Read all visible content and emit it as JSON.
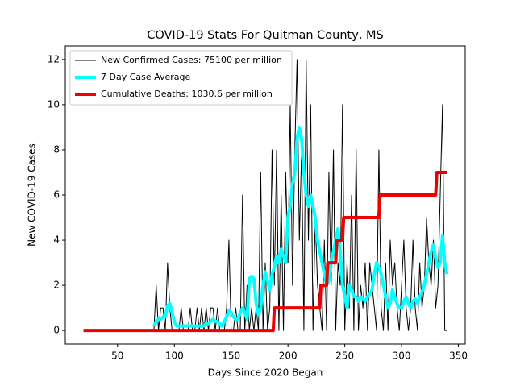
{
  "chart_data": {
    "type": "line",
    "title": "COVID-19 Stats For Quitman County, MS",
    "x_label": "Days Since 2020 Began",
    "y_label": "New COVID-19 Cases",
    "xlim": [
      4,
      356
    ],
    "ylim": [
      -0.6,
      12.6
    ],
    "xticks": [
      50,
      100,
      150,
      200,
      250,
      300,
      350
    ],
    "yticks": [
      0,
      2,
      4,
      6,
      8,
      10,
      12
    ],
    "legend": "upper left",
    "x": [
      82,
      84,
      86,
      88,
      90,
      92,
      94,
      96,
      98,
      100,
      102,
      104,
      106,
      108,
      110,
      112,
      114,
      116,
      118,
      120,
      122,
      124,
      126,
      128,
      130,
      132,
      134,
      136,
      138,
      140,
      142,
      144,
      146,
      148,
      150,
      152,
      154,
      156,
      158,
      160,
      162,
      164,
      166,
      168,
      170,
      172,
      174,
      176,
      178,
      180,
      182,
      184,
      186,
      188,
      190,
      192,
      194,
      196,
      198,
      200,
      202,
      204,
      206,
      208,
      210,
      212,
      214,
      216,
      218,
      220,
      222,
      224,
      226,
      228,
      230,
      232,
      234,
      236,
      238,
      240,
      242,
      244,
      246,
      248,
      250,
      252,
      254,
      256,
      258,
      260,
      262,
      264,
      266,
      268,
      270,
      272,
      274,
      276,
      278,
      280,
      282,
      284,
      286,
      288,
      290,
      292,
      294,
      296,
      298,
      300,
      302,
      304,
      306,
      308,
      310,
      312,
      314,
      316,
      318,
      320,
      322,
      324,
      326,
      328,
      330,
      332,
      334,
      336,
      338,
      340
    ],
    "series": [
      {
        "name": "New Confirmed Cases: 75100 per million",
        "color": "#000000",
        "width": 1,
        "values": [
          0,
          2,
          0,
          1,
          1,
          0,
          3,
          1,
          0,
          0,
          0,
          0,
          1,
          0,
          0,
          0,
          1,
          0,
          0,
          1,
          0,
          1,
          0,
          1,
          0,
          1,
          1,
          0,
          1,
          0,
          0,
          0,
          1,
          4,
          0,
          0,
          1,
          0,
          0,
          6,
          0,
          2,
          0,
          1,
          0,
          1,
          0,
          7,
          0,
          3,
          0,
          1,
          8,
          2,
          8,
          0,
          6,
          0,
          7,
          3,
          10,
          2,
          8,
          12,
          4,
          8,
          0,
          12,
          4,
          10,
          0,
          5,
          2,
          1,
          0,
          4,
          0,
          7,
          2,
          8,
          0,
          3,
          2,
          10,
          0,
          3,
          1,
          6,
          0,
          8,
          0,
          2,
          1,
          3,
          0,
          3,
          2,
          1,
          0,
          8,
          1,
          0,
          3,
          0,
          4,
          2,
          3,
          1,
          0,
          2,
          4,
          1,
          0,
          1,
          4,
          1,
          0,
          3,
          1,
          2,
          5,
          3,
          2,
          4,
          1,
          2,
          6,
          10,
          0,
          0
        ]
      },
      {
        "name": "7 Day Case Average",
        "color": "#00ffff",
        "width": 4,
        "values": [
          0.2,
          0.4,
          0.5,
          0.5,
          0.6,
          0.6,
          1.1,
          1.2,
          0.8,
          0.4,
          0.2,
          0.2,
          0.2,
          0.2,
          0.2,
          0.2,
          0.2,
          0.2,
          0.2,
          0.2,
          0.2,
          0.2,
          0.2,
          0.3,
          0.3,
          0.4,
          0.5,
          0.4,
          0.4,
          0.3,
          0.2,
          0.4,
          0.6,
          0.9,
          0.8,
          0.6,
          0.5,
          0.5,
          0.8,
          1.0,
          0.8,
          0.5,
          2.3,
          2.4,
          2.3,
          1.2,
          0.7,
          1.0,
          2.0,
          2.6,
          2.2,
          1.8,
          2.5,
          2.8,
          3.3,
          3.0,
          3.6,
          3.3,
          3.0,
          5.0,
          5.5,
          6.5,
          7.0,
          8.5,
          9.0,
          8.5,
          7.0,
          6.0,
          5.5,
          6.0,
          5.5,
          5.0,
          4.0,
          3.5,
          3.0,
          2.5,
          2.0,
          2.2,
          3.0,
          3.5,
          4.0,
          4.5,
          3.5,
          2.0,
          1.5,
          1.0,
          2.0,
          1.8,
          1.5,
          1.5,
          1.3,
          1.5,
          1.4,
          1.3,
          1.5,
          1.6,
          1.8,
          2.5,
          3.0,
          2.8,
          2.5,
          2.0,
          1.5,
          1.0,
          1.2,
          1.8,
          1.5,
          1.2,
          1.0,
          1.0,
          1.3,
          1.5,
          1.2,
          1.0,
          1.3,
          1.4,
          1.2,
          1.5,
          1.7,
          2.0,
          2.5,
          3.0,
          3.5,
          3.8,
          3.2,
          2.8,
          3.0,
          4.2,
          3.0,
          2.5
        ]
      },
      {
        "name": "Cumulative Deaths: 1030.6 per million",
        "color": "#ee0000",
        "width": 4,
        "x": [
          20,
          187,
          188,
          228,
          229,
          234,
          235,
          242,
          243,
          248,
          249,
          280,
          281,
          330,
          331,
          340
        ],
        "values": [
          0,
          0,
          1,
          1,
          2,
          2,
          3,
          3,
          4,
          4,
          5,
          5,
          6,
          6,
          7,
          7
        ]
      }
    ]
  }
}
